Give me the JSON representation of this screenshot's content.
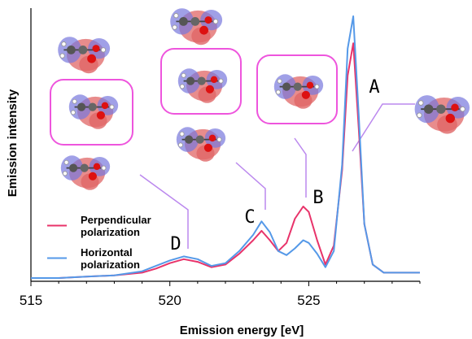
{
  "chart_data": {
    "type": "line",
    "xlabel": "Emission energy [eV]",
    "ylabel": "Emission intensity",
    "xlim": [
      515,
      529
    ],
    "ylim": [
      0,
      1.0
    ],
    "x_ticks": [
      "515",
      "520",
      "525"
    ],
    "x_tick_values": [
      515,
      520,
      525
    ],
    "legend": {
      "placement": "lower-left"
    },
    "series": [
      {
        "name": "Perpendicular polarization",
        "legend_lines": [
          "Perpendicular",
          "polarization"
        ],
        "color": "#e8336a",
        "x": [
          515.0,
          516.0,
          517.0,
          518.0,
          519.0,
          519.5,
          520.0,
          520.5,
          521.0,
          521.5,
          522.0,
          522.5,
          523.0,
          523.3,
          523.6,
          523.9,
          524.2,
          524.5,
          524.8,
          525.0,
          525.3,
          525.6,
          525.9,
          526.2,
          526.4,
          526.6,
          526.8,
          527.0,
          527.3,
          527.7,
          528.0,
          528.5,
          529.0
        ],
        "y": [
          0.0,
          0.0,
          0.005,
          0.01,
          0.02,
          0.035,
          0.055,
          0.07,
          0.06,
          0.04,
          0.05,
          0.09,
          0.14,
          0.175,
          0.14,
          0.1,
          0.13,
          0.22,
          0.265,
          0.245,
          0.14,
          0.05,
          0.12,
          0.4,
          0.75,
          0.87,
          0.55,
          0.2,
          0.05,
          0.02,
          0.02,
          0.02,
          0.02
        ]
      },
      {
        "name": "Horizontal polarization",
        "legend_lines": [
          "Horizontal",
          "polarization"
        ],
        "color": "#5599e8",
        "x": [
          515.0,
          516.0,
          517.0,
          518.0,
          519.0,
          519.5,
          520.0,
          520.5,
          521.0,
          521.5,
          522.0,
          522.5,
          523.0,
          523.3,
          523.6,
          523.9,
          524.2,
          524.5,
          524.8,
          525.0,
          525.3,
          525.6,
          525.9,
          526.2,
          526.4,
          526.6,
          526.8,
          527.0,
          527.3,
          527.7,
          528.0,
          528.5,
          529.0
        ],
        "y": [
          0.0,
          0.0,
          0.005,
          0.01,
          0.025,
          0.045,
          0.065,
          0.08,
          0.07,
          0.045,
          0.055,
          0.1,
          0.16,
          0.21,
          0.17,
          0.1,
          0.085,
          0.11,
          0.14,
          0.13,
          0.09,
          0.04,
          0.1,
          0.42,
          0.85,
          0.97,
          0.6,
          0.2,
          0.05,
          0.02,
          0.02,
          0.02,
          0.02
        ]
      }
    ],
    "annotations": [
      {
        "label": "A",
        "x": 526.65
      },
      {
        "label": "B",
        "x": 524.85
      },
      {
        "label": "C",
        "x": 523.55
      },
      {
        "label": "D",
        "x": 520.6
      }
    ]
  },
  "orbital_colors": {
    "positive": "#e06666",
    "negative": "#7777dd",
    "frame": "#ee55dd",
    "pointer": "#bb88ee"
  }
}
